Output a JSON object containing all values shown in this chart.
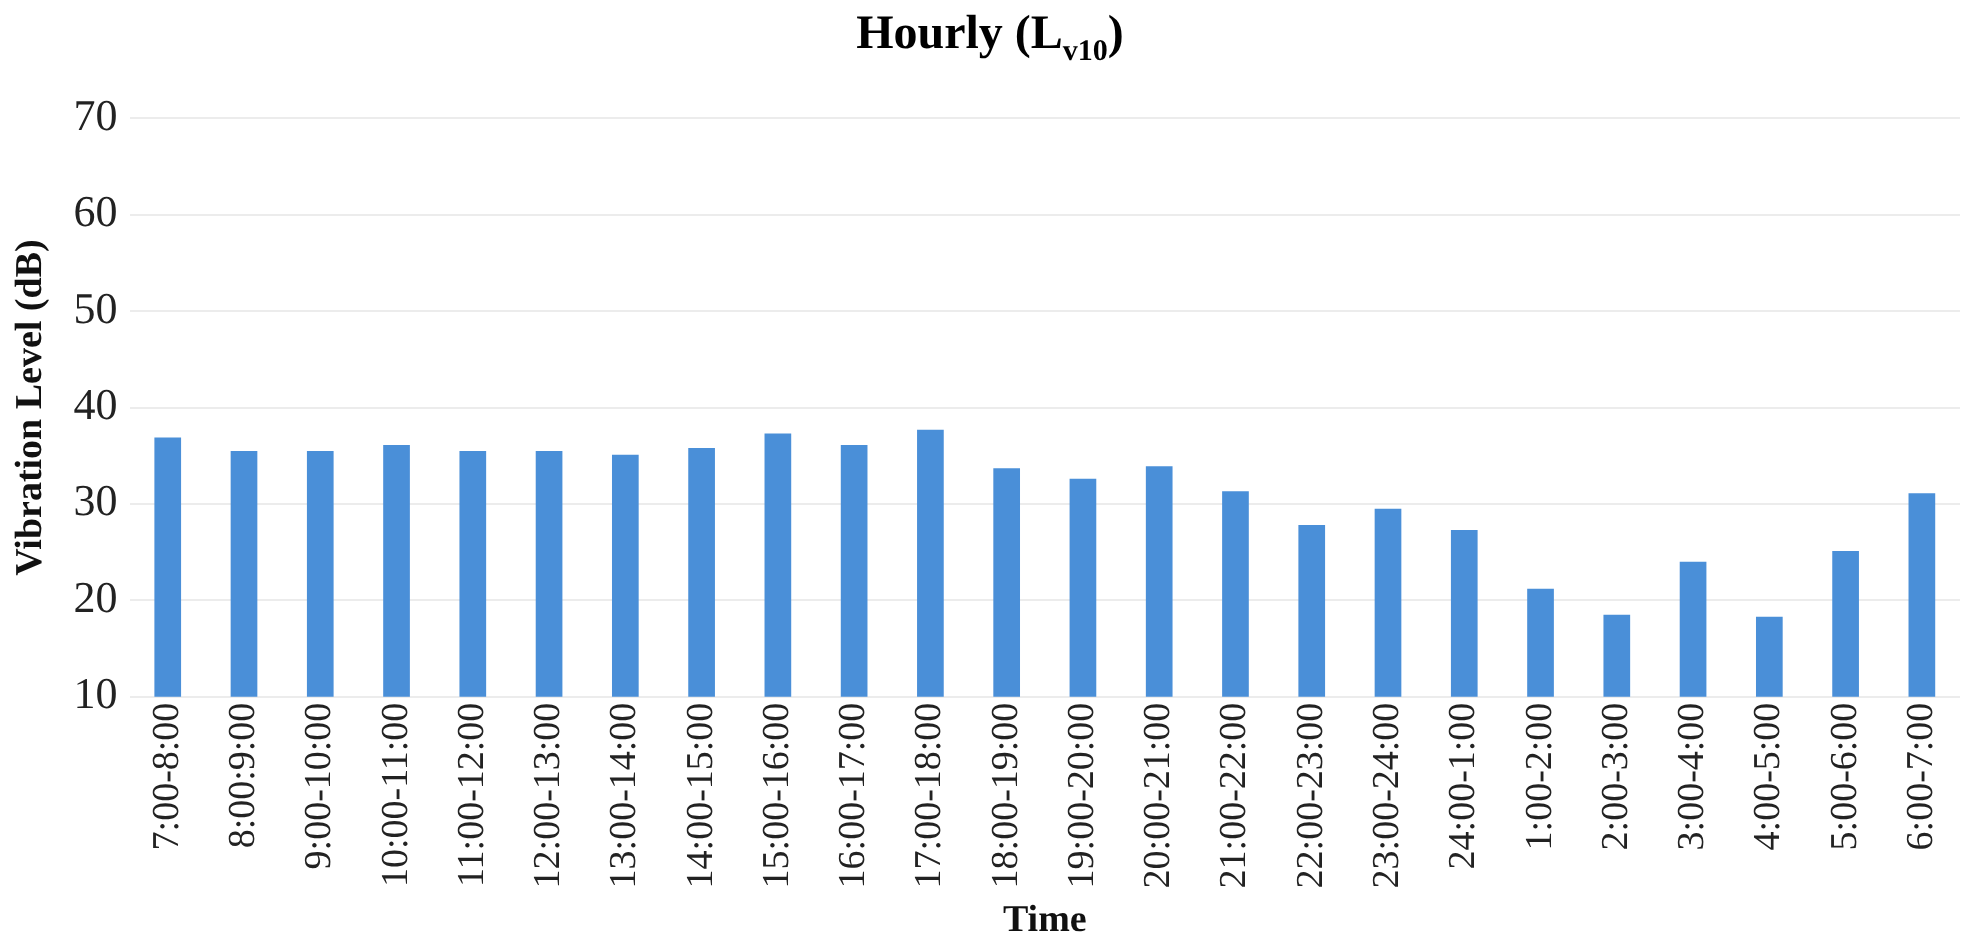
{
  "chart_data": {
    "type": "bar",
    "title": "Hourly (L$_{v10}$)",
    "xlabel": "Time",
    "ylabel": "Vibration Level (dB)",
    "categories": [
      "7:00-8:00",
      "8:00:9:00",
      "9:00-10:00",
      "10:00-11:00",
      "11:00-12:00",
      "12:00-13:00",
      "13:00-14:00",
      "14:00-15:00",
      "15:00-16:00",
      "16:00-17:00",
      "17:00-18:00",
      "18:00-19:00",
      "19:00-20:00",
      "20:00-21:00",
      "21:00-22:00",
      "22:00-23:00",
      "23:00-24:00",
      "24:00-1:00",
      "1:00-2:00",
      "2:00-3:00",
      "3:00-4:00",
      "4:00-5:00",
      "5:00-6:00",
      "6:00-7:00"
    ],
    "values": [
      36.9,
      35.5,
      35.5,
      36.1,
      35.5,
      35.5,
      35.1,
      35.8,
      37.3,
      36.1,
      37.7,
      33.7,
      32.6,
      33.9,
      31.3,
      27.8,
      29.5,
      27.3,
      21.2,
      18.5,
      24,
      18.3,
      25.1,
      31.1
    ],
    "color": "#4a8fd8",
    "ylim": [
      10,
      70
    ],
    "yticks": [
      10,
      20,
      30,
      40,
      50,
      60,
      70
    ],
    "grid": "y"
  }
}
